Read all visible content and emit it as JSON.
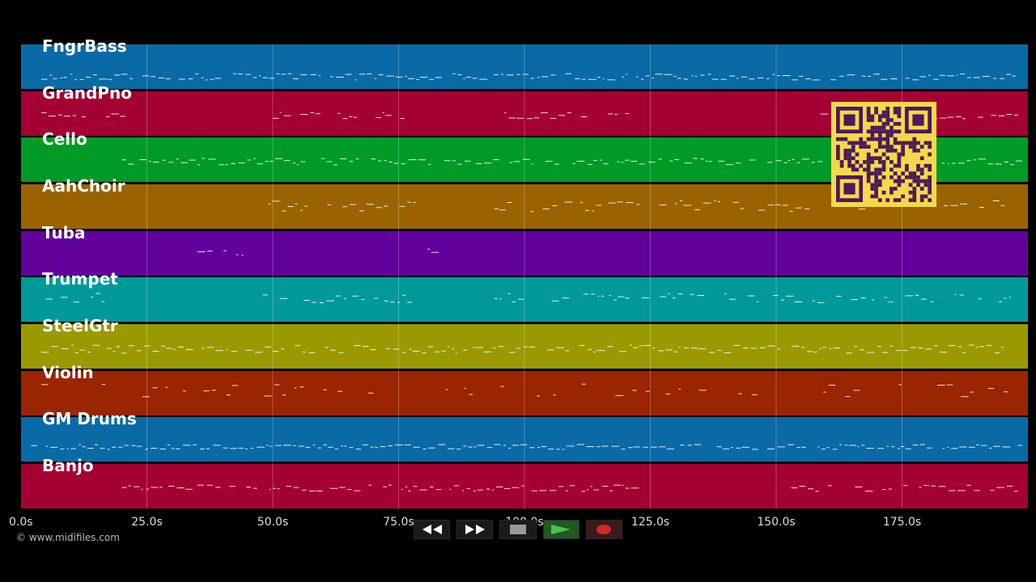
{
  "tracks": [
    {
      "name": "FngrBass",
      "color": "#0a6aa5"
    },
    {
      "name": "GrandPno",
      "color": "#a40033"
    },
    {
      "name": "Cello",
      "color": "#009a26"
    },
    {
      "name": "AahChoir",
      "color": "#9a6300"
    },
    {
      "name": "Tuba",
      "color": "#62009b"
    },
    {
      "name": "Trumpet",
      "color": "#00999a"
    },
    {
      "name": "SteelGtr",
      "color": "#9a9a00"
    },
    {
      "name": "Violin",
      "color": "#9a2500"
    },
    {
      "name": "GM Drums",
      "color": "#0a6aa5"
    },
    {
      "name": "Banjo",
      "color": "#a40033"
    }
  ],
  "timeline": {
    "ticks": [
      "0.0s",
      "25.0s",
      "50.0s",
      "75.0s",
      "100.0s",
      "125.0s",
      "150.0s",
      "175.0s"
    ]
  },
  "copyright": "© www.midifiles.com",
  "transport": {
    "rewind_icon": "double-left-arrow",
    "forward_icon": "double-right-arrow",
    "stop_icon": "square",
    "play_icon": "triangle",
    "record_icon": "circle"
  },
  "qr_code": {
    "icon": "qr-code"
  }
}
